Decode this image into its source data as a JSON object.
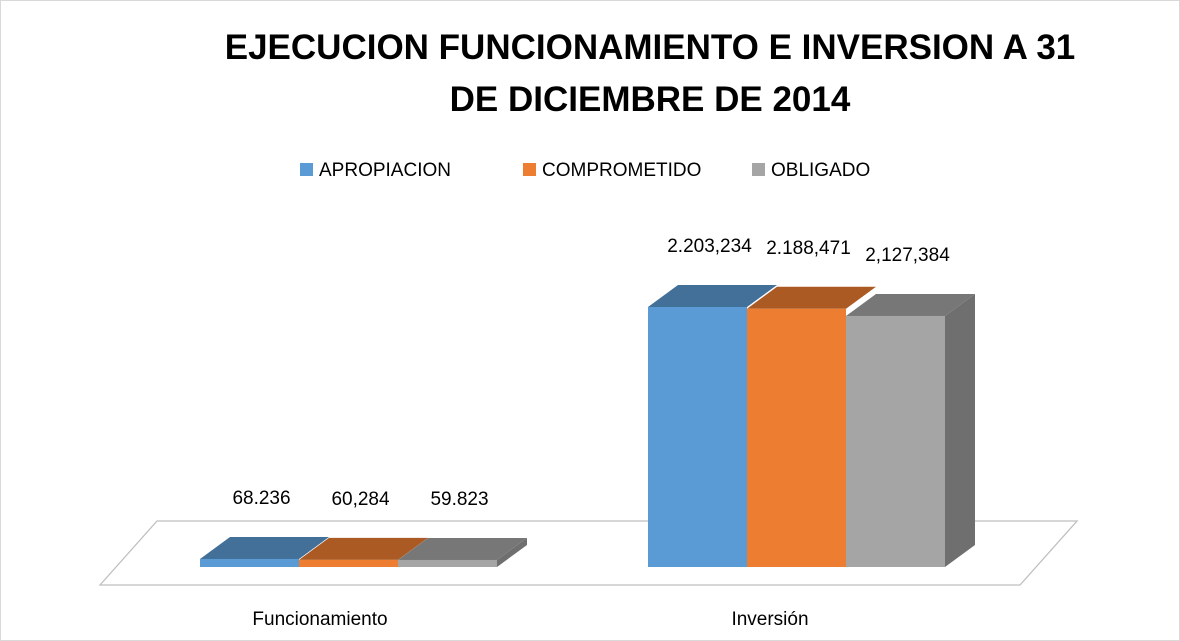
{
  "chart_data": {
    "type": "bar3d",
    "title": "EJECUCION FUNCIONAMIENTO E INVERSION A 31 DE DICIEMBRE DE 2014",
    "categories": [
      "Funcionamiento",
      "Inversión"
    ],
    "series": [
      {
        "name": "APROPIACION",
        "color": "#5b9bd5",
        "values": [
          68236,
          2203234
        ],
        "value_labels": [
          "68.236",
          "2.203,234"
        ]
      },
      {
        "name": "COMPROMETIDO",
        "color": "#ed7d31",
        "values": [
          60284,
          2188471
        ],
        "value_labels": [
          "60,284",
          "2.188,471"
        ]
      },
      {
        "name": "OBLIGADO",
        "color": "#a5a5a5",
        "values": [
          59823,
          2127384
        ],
        "value_labels": [
          "59.823",
          "2,127,384"
        ]
      }
    ],
    "legend": "top"
  }
}
